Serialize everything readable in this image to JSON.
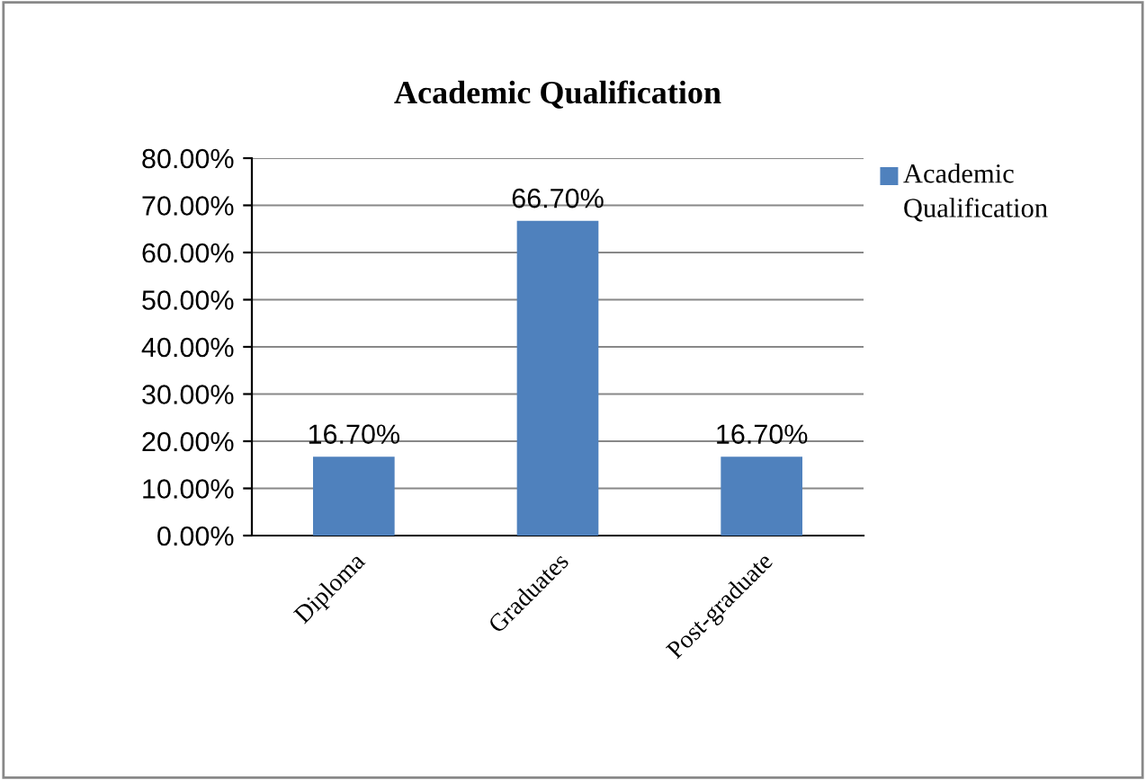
{
  "chart_data": {
    "type": "bar",
    "title": "Academic Qualification",
    "categories": [
      "Diploma",
      "Graduates",
      "Post-graduate"
    ],
    "series": [
      {
        "name": "Academic Qualification",
        "color": "#4f81bd",
        "values": [
          16.7,
          66.7,
          16.7
        ],
        "value_labels": [
          "16.70%",
          "66.70%",
          "16.70%"
        ]
      }
    ],
    "ylim": [
      0,
      80
    ],
    "yticks": [
      {
        "value": 0,
        "label": "0.00%"
      },
      {
        "value": 10,
        "label": "10.00%"
      },
      {
        "value": 20,
        "label": "20.00%"
      },
      {
        "value": 30,
        "label": "30.00%"
      },
      {
        "value": 40,
        "label": "40.00%"
      },
      {
        "value": 50,
        "label": "50.00%"
      },
      {
        "value": 60,
        "label": "60.00%"
      },
      {
        "value": 70,
        "label": "70.00%"
      },
      {
        "value": 80,
        "label": "80.00%"
      }
    ],
    "grid": "y",
    "legend": "right"
  }
}
